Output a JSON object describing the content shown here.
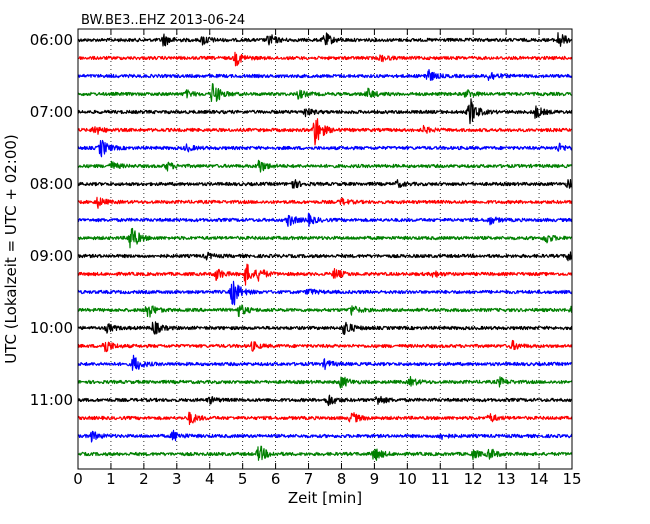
{
  "chart_data": {
    "type": "line",
    "title": "BW.BE3..EHZ 2013-06-24",
    "xlabel": "Zeit  [min]",
    "ylabel": "UTC (Lokalzeit = UTC + 02:00)",
    "xlim": [
      0,
      15
    ],
    "x_ticks": [
      "0",
      "1",
      "2",
      "3",
      "4",
      "5",
      "6",
      "7",
      "8",
      "9",
      "10",
      "11",
      "12",
      "13",
      "14",
      "15"
    ],
    "y_ticks": [
      {
        "row": 0,
        "label": "06:00"
      },
      {
        "row": 4,
        "label": "07:00"
      },
      {
        "row": 8,
        "label": "08:00"
      },
      {
        "row": 12,
        "label": "09:00"
      },
      {
        "row": 16,
        "label": "10:00"
      },
      {
        "row": 20,
        "label": "11:00"
      }
    ],
    "grid_x": "dotted",
    "trace_minutes": 15,
    "trace_colors": [
      "#000000",
      "#ff0000",
      "#0000ff",
      "#008000"
    ],
    "traces": [
      {
        "events": [
          [
            2.6,
            6
          ],
          [
            3.8,
            5
          ],
          [
            5.8,
            6
          ],
          [
            7.5,
            7
          ],
          [
            14.6,
            8
          ]
        ]
      },
      {
        "events": [
          [
            4.8,
            7
          ],
          [
            9.2,
            3
          ]
        ]
      },
      {
        "events": [
          [
            10.6,
            7
          ],
          [
            12.5,
            5
          ]
        ]
      },
      {
        "events": [
          [
            3.3,
            3
          ],
          [
            4.1,
            12
          ],
          [
            6.7,
            4
          ],
          [
            8.8,
            5
          ],
          [
            11.8,
            4
          ]
        ]
      },
      {
        "events": [
          [
            6.9,
            4
          ],
          [
            11.9,
            14
          ],
          [
            13.9,
            6
          ]
        ]
      },
      {
        "events": [
          [
            0.5,
            5
          ],
          [
            7.2,
            17
          ],
          [
            10.5,
            3
          ]
        ]
      },
      {
        "events": [
          [
            0.7,
            9
          ],
          [
            3.3,
            3
          ],
          [
            14.6,
            4
          ]
        ]
      },
      {
        "events": [
          [
            1.0,
            4
          ],
          [
            2.7,
            4
          ],
          [
            5.5,
            7
          ]
        ]
      },
      {
        "events": [
          [
            6.5,
            5
          ],
          [
            9.7,
            3
          ],
          [
            14.9,
            5
          ]
        ]
      },
      {
        "events": [
          [
            0.6,
            5
          ],
          [
            8.0,
            3
          ]
        ]
      },
      {
        "events": [
          [
            6.4,
            6
          ],
          [
            7.0,
            5
          ],
          [
            12.5,
            4
          ]
        ]
      },
      {
        "events": [
          [
            1.6,
            14
          ],
          [
            14.2,
            5
          ]
        ]
      },
      {
        "events": [
          [
            3.9,
            3
          ],
          [
            14.9,
            6
          ]
        ]
      },
      {
        "events": [
          [
            4.2,
            6
          ],
          [
            5.1,
            11
          ],
          [
            5.5,
            5
          ],
          [
            7.8,
            5
          ],
          [
            10.8,
            3
          ]
        ]
      },
      {
        "events": [
          [
            4.7,
            15
          ],
          [
            7.0,
            3
          ]
        ]
      },
      {
        "events": [
          [
            2.1,
            9
          ],
          [
            4.9,
            6
          ],
          [
            8.3,
            5
          ],
          [
            15.0,
            4
          ]
        ]
      },
      {
        "events": [
          [
            0.9,
            4
          ],
          [
            2.3,
            7
          ],
          [
            8.1,
            8
          ]
        ]
      },
      {
        "events": [
          [
            0.8,
            8
          ],
          [
            5.3,
            4
          ],
          [
            13.2,
            4
          ]
        ]
      },
      {
        "events": [
          [
            1.7,
            9
          ],
          [
            7.5,
            4
          ]
        ]
      },
      {
        "events": [
          [
            8.0,
            6
          ],
          [
            10.1,
            4
          ],
          [
            12.8,
            4
          ]
        ]
      },
      {
        "events": [
          [
            4.0,
            3
          ],
          [
            7.6,
            6
          ],
          [
            9.1,
            5
          ]
        ]
      },
      {
        "events": [
          [
            3.4,
            6
          ],
          [
            8.3,
            6
          ],
          [
            12.5,
            4
          ]
        ]
      },
      {
        "events": [
          [
            0.4,
            5
          ],
          [
            2.9,
            5
          ],
          [
            11.0,
            3
          ]
        ]
      },
      {
        "events": [
          [
            5.5,
            9
          ],
          [
            9.0,
            7
          ],
          [
            12.0,
            4
          ],
          [
            12.5,
            5
          ]
        ]
      }
    ]
  }
}
